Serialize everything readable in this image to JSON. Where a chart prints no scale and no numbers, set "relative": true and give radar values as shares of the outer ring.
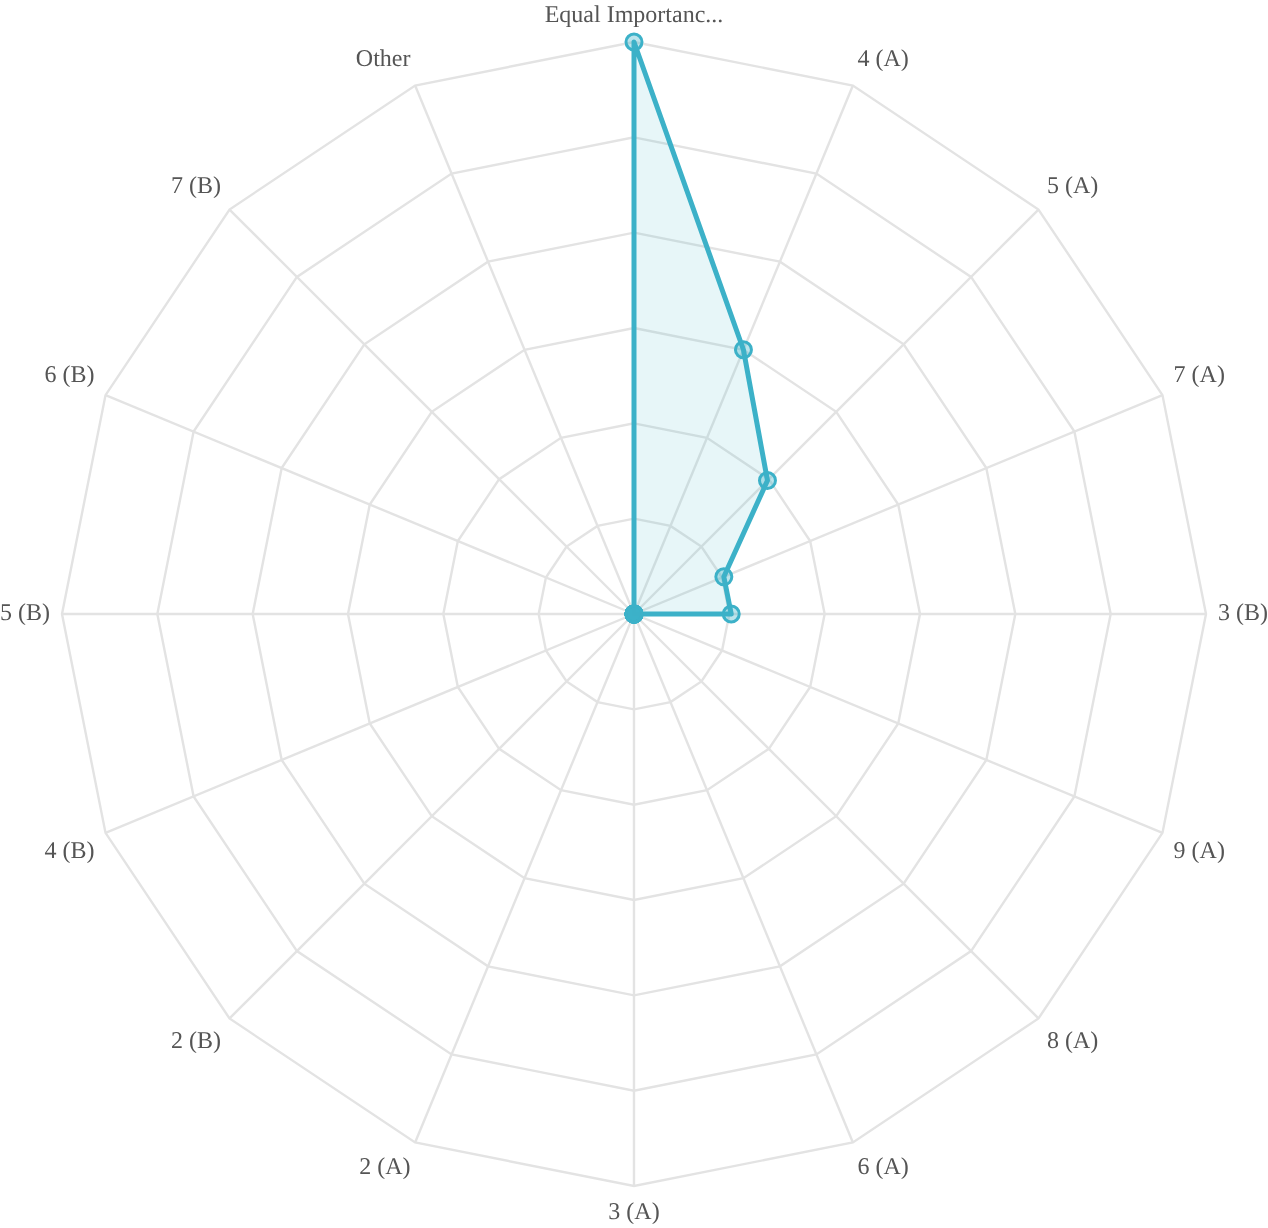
{
  "chart_data": {
    "type": "radar",
    "relative": true,
    "grid": true,
    "marker": "circle",
    "categories": [
      "Equal Importanc...",
      "4 (A)",
      "5 (A)",
      "7 (A)",
      "3 (B)",
      "9 (A)",
      "8 (A)",
      "6 (A)",
      "3 (A)",
      "2 (A)",
      "2 (B)",
      "4 (B)",
      "5 (B)",
      "6 (B)",
      "7 (B)",
      "Other"
    ],
    "series": [
      {
        "color": "#3cb1c8",
        "values": [
          1,
          0.5,
          0.33,
          0.17,
          0.17,
          0,
          0,
          0,
          0,
          0,
          0,
          0,
          0,
          0,
          0,
          0
        ]
      }
    ]
  }
}
